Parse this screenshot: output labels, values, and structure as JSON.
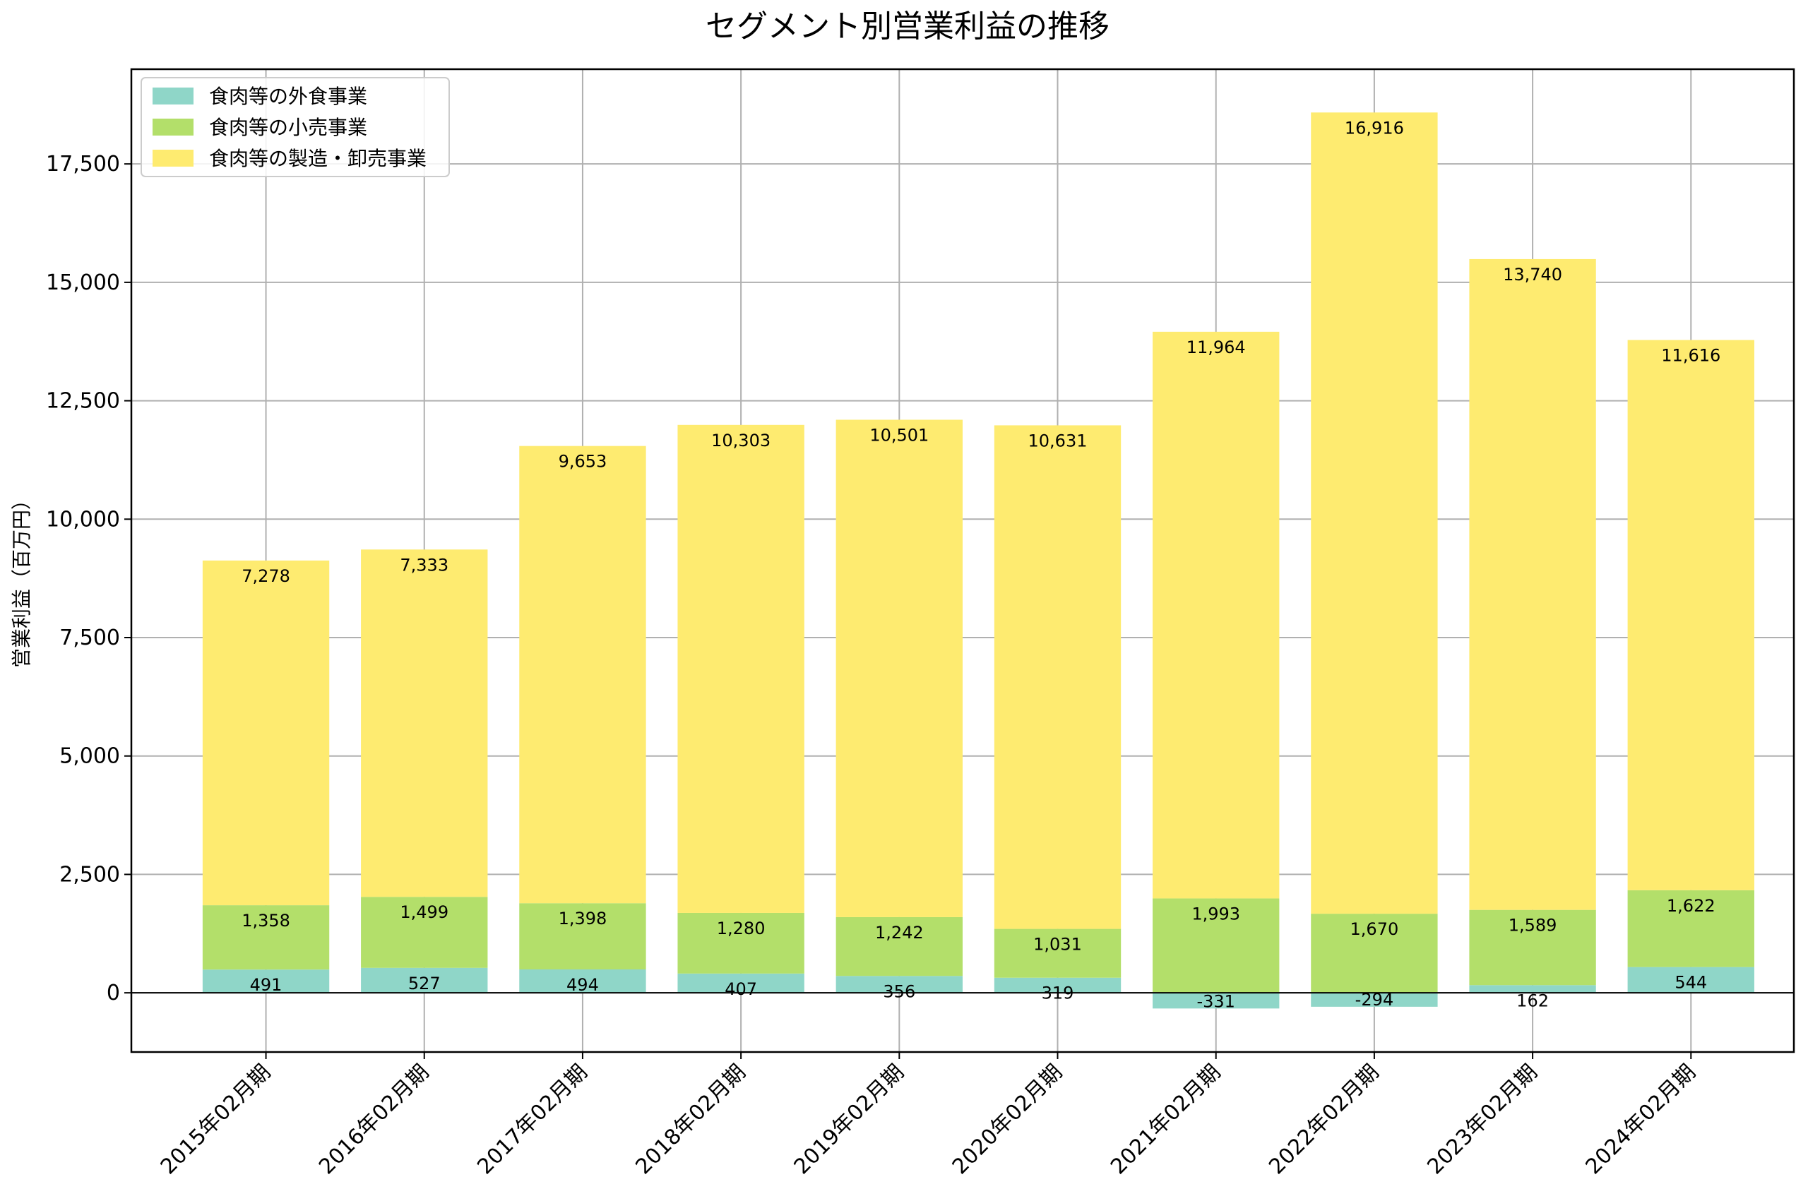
{
  "chart_data": {
    "type": "bar",
    "stacked": true,
    "title": "セグメント別営業利益の推移",
    "xlabel": "",
    "ylabel": "営業利益（百万円）",
    "ylim": [
      -1250,
      19500
    ],
    "yticks": [
      0,
      2500,
      5000,
      7500,
      10000,
      12500,
      15000,
      17500
    ],
    "ytick_labels": [
      "0",
      "2,500",
      "5,000",
      "7,500",
      "10,000",
      "12,500",
      "15,000",
      "17,500"
    ],
    "grid": true,
    "legend": "top-left",
    "categories": [
      "2015年02月期",
      "2016年02月期",
      "2017年02月期",
      "2018年02月期",
      "2019年02月期",
      "2020年02月期",
      "2021年02月期",
      "2022年02月期",
      "2023年02月期",
      "2024年02月期"
    ],
    "series": [
      {
        "name": "食肉等の外食事業",
        "color": "#8fd6c8",
        "values": [
          491,
          527,
          494,
          407,
          356,
          319,
          -331,
          -294,
          162,
          544
        ],
        "labels": [
          "491",
          "527",
          "494",
          "407",
          "356",
          "319",
          "-331",
          "-294",
          "162",
          "544"
        ]
      },
      {
        "name": "食肉等の小売事業",
        "color": "#b3df6a",
        "values": [
          1358,
          1499,
          1398,
          1280,
          1242,
          1031,
          1993,
          1670,
          1589,
          1622
        ],
        "labels": [
          "1,358",
          "1,499",
          "1,398",
          "1,280",
          "1,242",
          "1,031",
          "1,993",
          "1,670",
          "1,589",
          "1,622"
        ]
      },
      {
        "name": "食肉等の製造・卸売事業",
        "color": "#feeb70",
        "values": [
          7278,
          7333,
          9653,
          10303,
          10501,
          10631,
          11964,
          16916,
          13740,
          11616
        ],
        "labels": [
          "7,278",
          "7,333",
          "9,653",
          "10,303",
          "10,501",
          "10,631",
          "11,964",
          "16,916",
          "13,740",
          "11,616"
        ]
      }
    ]
  }
}
